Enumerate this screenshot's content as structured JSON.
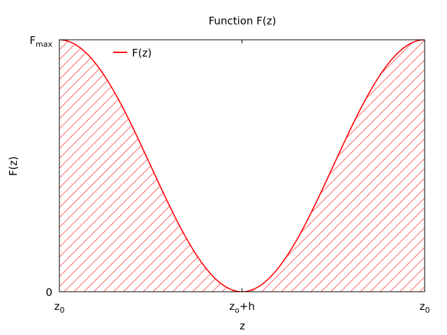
{
  "chart_data": {
    "type": "area",
    "title": "Function F(z)",
    "xlabel": "z",
    "ylabel": "F(z)",
    "x_ticks": [
      {
        "base": "z",
        "sub": "0",
        "suffix": ""
      },
      {
        "base": "z",
        "sub": "o",
        "suffix": "+h"
      },
      {
        "base": "z",
        "sub": "0",
        "suffix": ""
      }
    ],
    "y_ticks": [
      {
        "base": "0",
        "sub": ""
      },
      {
        "base": "F",
        "sub": "max"
      }
    ],
    "series": [
      {
        "name": "F(z)",
        "color": "#ff0000",
        "formula": "F = Fmax * (1 + cos(2*pi*t)) / 2, t in [0, 1]",
        "fill": "diagonal-hatch"
      }
    ],
    "xlim": [
      0,
      1
    ],
    "ylim": [
      0,
      1
    ],
    "grid": false,
    "legend_position": "top-left",
    "hatch_color": "#ff6666"
  }
}
